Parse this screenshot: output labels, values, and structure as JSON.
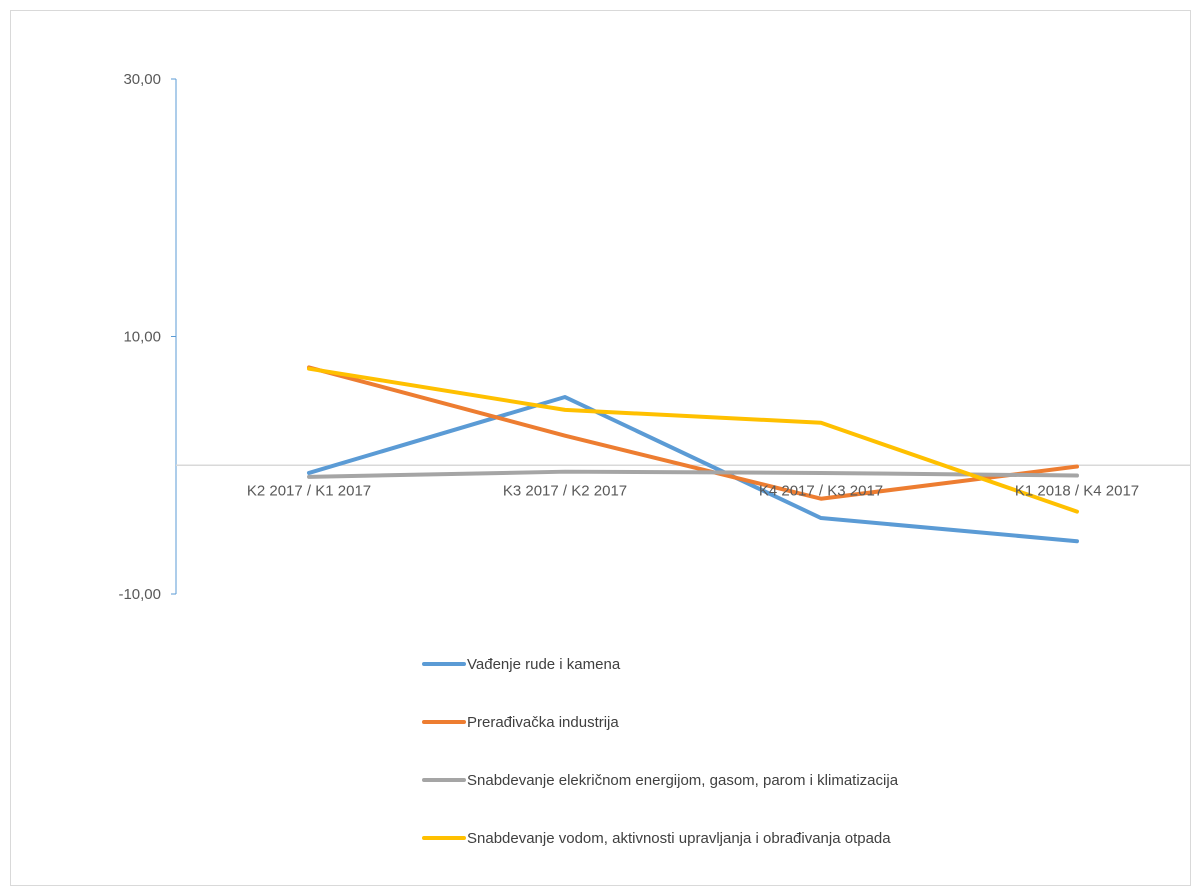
{
  "chart_data": {
    "type": "line",
    "title": "",
    "xlabel": "",
    "ylabel": "",
    "categories": [
      "K2 2017 / K1 2017",
      "K3 2017 / K2 2017",
      "K4 2017 / K3 2017",
      "K1 2018 / K4 2017"
    ],
    "y_ticks": [
      "30,00",
      "10,00",
      "-10,00"
    ],
    "y_tick_values": [
      30,
      10,
      -10
    ],
    "ylim": [
      -10,
      30
    ],
    "grid": false,
    "legend_position": "bottom",
    "series": [
      {
        "name": "Vađenje rude i kamena",
        "color": "#5b9bd5",
        "values": [
          -0.6,
          5.3,
          -4.1,
          -5.9
        ]
      },
      {
        "name": "Prerađivačka industrija",
        "color": "#ed7d31",
        "values": [
          7.6,
          2.3,
          -2.6,
          -0.1
        ]
      },
      {
        "name": "Snabdevanje elekričnom energijom, gasom, parom i klimatizacija",
        "color": "#a5a5a5",
        "values": [
          -0.9,
          -0.5,
          -0.6,
          -0.8
        ]
      },
      {
        "name": "Snabdevanje vodom, aktivnosti upravljanja i obrađivanja  otpada",
        "color": "#ffc000",
        "values": [
          7.5,
          4.3,
          3.3,
          -3.6
        ]
      }
    ]
  }
}
